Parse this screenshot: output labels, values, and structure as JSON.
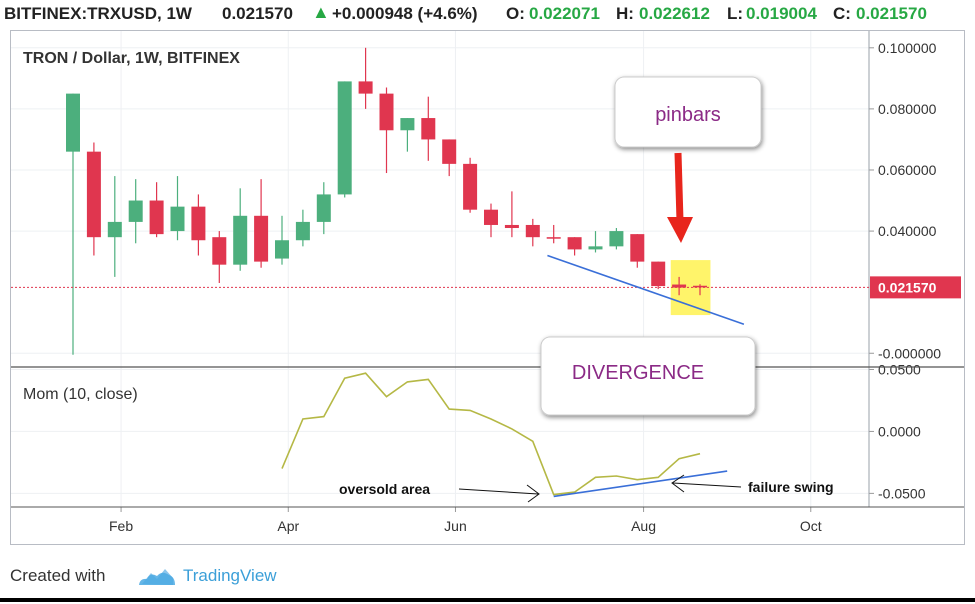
{
  "header": {
    "symbol": "BITFINEX:TRXUSD, 1W",
    "price": "0.021570",
    "change": "+0.000948 (+4.6%)",
    "open_label": "O:",
    "open": "0.022071",
    "high_label": "H:",
    "high": "0.022612",
    "low_label": "L:",
    "low": "0.019004",
    "close_label": "C:",
    "close": "0.021570"
  },
  "footer": {
    "created_with": "Created with",
    "brand": "TradingView"
  },
  "icons": {
    "up_arrow": "triangle-up-icon",
    "logo": "tradingview-cloud-icon"
  },
  "colors": {
    "up": "#4caf7d",
    "down": "#e0364f",
    "momentum": "#b5b845",
    "trendline": "#3a6fd8",
    "highlight": "#fff46a",
    "arrow": "#e8251c",
    "price_line": "#e0364f"
  },
  "chart_data": [
    {
      "type": "candlestick",
      "title": "TRON / Dollar, 1W, BITFINEX",
      "y_ticks": [
        "0.100000",
        "0.080000",
        "0.060000",
        "0.040000",
        "-0.000000"
      ],
      "y_tick_values": [
        0.1,
        0.08,
        0.06,
        0.04,
        0.0
      ],
      "ylim": [
        -0.0045,
        0.1055
      ],
      "x_ticks": [
        "Feb",
        "Apr",
        "Jun",
        "Aug",
        "Oct"
      ],
      "x_tick_index": [
        2.3,
        10.3,
        18.3,
        27.3,
        35.3
      ],
      "last_price_label": "0.021570",
      "last_price": 0.02157,
      "candles": [
        {
          "o": 0.066,
          "h": 0.085,
          "l": -0.0005,
          "c": 0.085
        },
        {
          "o": 0.066,
          "h": 0.069,
          "l": 0.032,
          "c": 0.038
        },
        {
          "o": 0.038,
          "h": 0.058,
          "l": 0.025,
          "c": 0.043
        },
        {
          "o": 0.043,
          "h": 0.057,
          "l": 0.036,
          "c": 0.05
        },
        {
          "o": 0.05,
          "h": 0.056,
          "l": 0.038,
          "c": 0.039
        },
        {
          "o": 0.04,
          "h": 0.058,
          "l": 0.037,
          "c": 0.048
        },
        {
          "o": 0.048,
          "h": 0.052,
          "l": 0.032,
          "c": 0.037
        },
        {
          "o": 0.038,
          "h": 0.04,
          "l": 0.023,
          "c": 0.029
        },
        {
          "o": 0.029,
          "h": 0.054,
          "l": 0.027,
          "c": 0.045
        },
        {
          "o": 0.045,
          "h": 0.057,
          "l": 0.028,
          "c": 0.03
        },
        {
          "o": 0.031,
          "h": 0.045,
          "l": 0.029,
          "c": 0.037
        },
        {
          "o": 0.037,
          "h": 0.047,
          "l": 0.035,
          "c": 0.043
        },
        {
          "o": 0.043,
          "h": 0.056,
          "l": 0.039,
          "c": 0.052
        },
        {
          "o": 0.052,
          "h": 0.089,
          "l": 0.051,
          "c": 0.089
        },
        {
          "o": 0.089,
          "h": 0.1,
          "l": 0.08,
          "c": 0.085
        },
        {
          "o": 0.085,
          "h": 0.087,
          "l": 0.059,
          "c": 0.073
        },
        {
          "o": 0.073,
          "h": 0.077,
          "l": 0.066,
          "c": 0.077
        },
        {
          "o": 0.077,
          "h": 0.084,
          "l": 0.063,
          "c": 0.07
        },
        {
          "o": 0.07,
          "h": 0.07,
          "l": 0.058,
          "c": 0.062
        },
        {
          "o": 0.062,
          "h": 0.064,
          "l": 0.046,
          "c": 0.047
        },
        {
          "o": 0.047,
          "h": 0.049,
          "l": 0.038,
          "c": 0.042
        },
        {
          "o": 0.042,
          "h": 0.053,
          "l": 0.038,
          "c": 0.041
        },
        {
          "o": 0.042,
          "h": 0.044,
          "l": 0.035,
          "c": 0.038
        },
        {
          "o": 0.038,
          "h": 0.042,
          "l": 0.036,
          "c": 0.0375
        },
        {
          "o": 0.038,
          "h": 0.038,
          "l": 0.032,
          "c": 0.034
        },
        {
          "o": 0.034,
          "h": 0.04,
          "l": 0.033,
          "c": 0.035
        },
        {
          "o": 0.035,
          "h": 0.041,
          "l": 0.034,
          "c": 0.04
        },
        {
          "o": 0.039,
          "h": 0.039,
          "l": 0.028,
          "c": 0.03
        },
        {
          "o": 0.03,
          "h": 0.03,
          "l": 0.021,
          "c": 0.022
        },
        {
          "o": 0.0225,
          "h": 0.025,
          "l": 0.019,
          "c": 0.0215
        },
        {
          "o": 0.0221,
          "h": 0.0226,
          "l": 0.019,
          "c": 0.02157
        }
      ],
      "annotations": {
        "callout_top": "pinbars",
        "callout_bottom": "DIVERGENCE"
      }
    },
    {
      "type": "line",
      "title": "Mom (10, close)",
      "y_ticks": [
        "0.0500",
        "0.0000",
        "-0.0500"
      ],
      "y_tick_values": [
        0.05,
        0.0,
        -0.05
      ],
      "ylim": [
        -0.061,
        0.052
      ],
      "start_index": 10,
      "values": [
        -0.03,
        0.01,
        0.012,
        0.043,
        0.047,
        0.028,
        0.04,
        0.042,
        0.018,
        0.017,
        0.01,
        0.002,
        -0.008,
        -0.051,
        -0.049,
        -0.037,
        -0.036,
        -0.039,
        -0.037,
        -0.022,
        -0.018
      ],
      "annotations": {
        "left_label": "oversold area",
        "right_label": "failure swing"
      }
    }
  ]
}
